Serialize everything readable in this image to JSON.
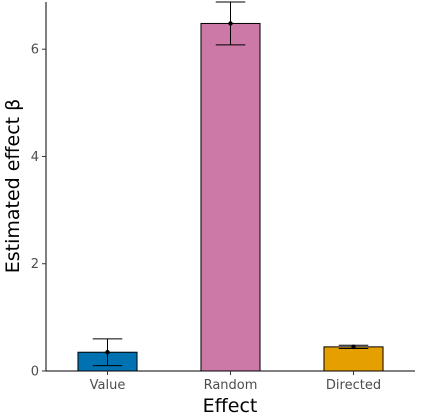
{
  "chart_data": {
    "type": "bar",
    "xlabel": "Effect",
    "ylabel": "Estimated effect β",
    "categories": [
      "Value",
      "Random",
      "Directed"
    ],
    "values": [
      0.35,
      6.48,
      0.45
    ],
    "error_low": [
      0.1,
      6.08,
      0.42
    ],
    "error_high": [
      0.6,
      6.88,
      0.48
    ],
    "colors": [
      "#0072B2",
      "#CC79A7",
      "#E69F00"
    ],
    "ylim": [
      0,
      6.88
    ],
    "yticks": [
      0,
      2,
      4,
      6
    ],
    "grid": false,
    "legend": "none"
  }
}
